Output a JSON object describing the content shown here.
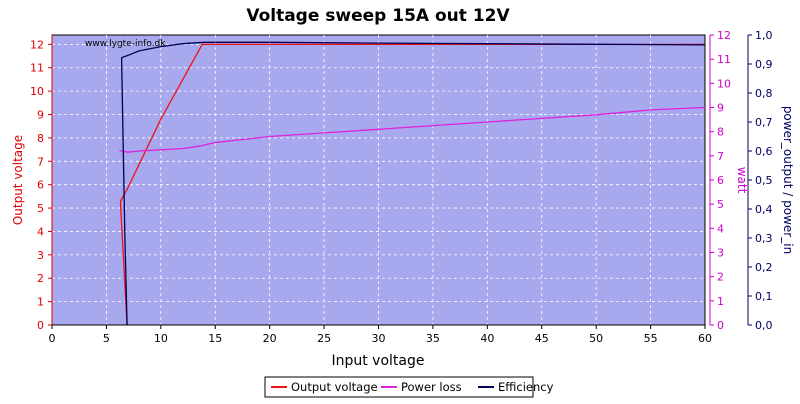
{
  "chart_data": {
    "type": "line",
    "title": "Voltage sweep 15A out 12V",
    "xlabel": "Input voltage",
    "watermark": "www.lygte-info.dk",
    "x_axis": {
      "range": [
        0,
        60
      ],
      "ticks": [
        0,
        5,
        10,
        15,
        20,
        25,
        30,
        35,
        40,
        45,
        50,
        55,
        60
      ],
      "tick_labels": [
        "0",
        "5",
        "10",
        "15",
        "20",
        "25",
        "30",
        "35",
        "40",
        "45",
        "50",
        "55",
        "60"
      ]
    },
    "axes": {
      "left": {
        "label": "Output voltage",
        "range": [
          0,
          12.4
        ],
        "ticks": [
          0,
          1,
          2,
          3,
          4,
          5,
          6,
          7,
          8,
          9,
          10,
          11,
          12
        ],
        "tick_labels": [
          "0",
          "1",
          "2",
          "3",
          "4",
          "5",
          "6",
          "7",
          "8",
          "9",
          "10",
          "11",
          "12"
        ],
        "color": "#dd0000"
      },
      "right1": {
        "label": "watt",
        "range": [
          0,
          12
        ],
        "ticks": [
          0,
          1,
          2,
          3,
          4,
          5,
          6,
          7,
          8,
          9,
          10,
          11,
          12
        ],
        "tick_labels": [
          "0",
          "1",
          "2",
          "3",
          "4",
          "5",
          "6",
          "7",
          "8",
          "9",
          "10",
          "11",
          "12"
        ],
        "color": "#cc00cc"
      },
      "right2": {
        "label": "power_output / power_in",
        "range": [
          0,
          1
        ],
        "ticks": [
          0,
          0.1,
          0.2,
          0.3,
          0.4,
          0.5,
          0.6,
          0.7,
          0.8,
          0.9,
          1.0
        ],
        "tick_labels": [
          "0,0",
          "0,1",
          "0,2",
          "0,3",
          "0,4",
          "0,5",
          "0,6",
          "0,7",
          "0,8",
          "0,9",
          "1,0"
        ],
        "color": "#000066"
      }
    },
    "grid": true,
    "plot_background": "#a8a8ee",
    "legend_position": "bottom",
    "series": [
      {
        "name": "Output voltage",
        "axis": "left",
        "color": "#ee1111",
        "x": [
          6.9,
          6.3,
          6.3,
          6.9,
          10.0,
          13.8,
          20,
          30,
          40,
          50,
          60
        ],
        "y": [
          0,
          5.1,
          5.3,
          5.8,
          8.8,
          12.0,
          12.0,
          12.0,
          12.0,
          12.0,
          12.0
        ]
      },
      {
        "name": "Power loss",
        "axis": "right1",
        "color": "#dd22dd",
        "x": [
          6.2,
          6.4,
          7,
          8,
          10,
          12,
          13.5,
          15,
          17,
          20,
          25,
          30,
          35,
          40,
          45,
          50,
          55,
          60
        ],
        "y": [
          7.2,
          7.2,
          7.15,
          7.2,
          7.25,
          7.3,
          7.4,
          7.55,
          7.65,
          7.8,
          7.95,
          8.1,
          8.25,
          8.4,
          8.55,
          8.7,
          8.9,
          9.0
        ]
      },
      {
        "name": "Efficiency",
        "axis": "right2",
        "color": "#000055",
        "x": [
          6.9,
          6.7,
          6.4,
          6.4,
          7,
          8,
          10,
          12,
          14,
          20,
          30,
          40,
          50,
          60
        ],
        "y": [
          0,
          0.3,
          0.9,
          0.922,
          0.93,
          0.945,
          0.96,
          0.97,
          0.975,
          0.975,
          0.972,
          0.97,
          0.968,
          0.966
        ]
      }
    ]
  }
}
